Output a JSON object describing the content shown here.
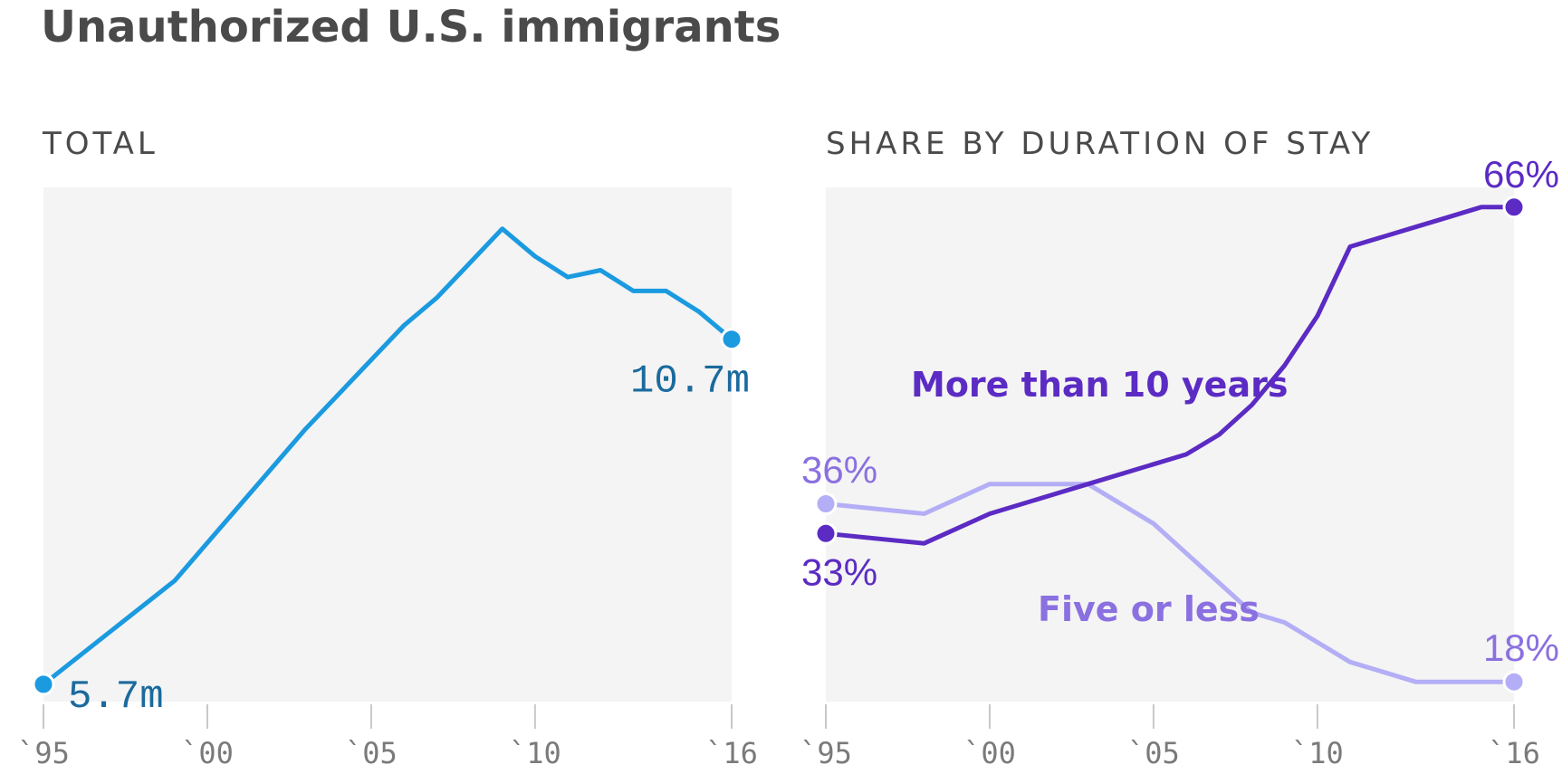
{
  "title": "Unauthorized U.S. immigrants",
  "colors": {
    "total_line": "#1b9ae0",
    "total_label": "#1a6a9e",
    "long_stay": "#5b2bc4",
    "short_stay": "#b3aef5",
    "short_stay_label": "#8a70e0",
    "panel_bg": "#f4f4f4",
    "tick": "#c8c8c8",
    "tick_label": "#7a7a7a"
  },
  "chart_data": [
    {
      "type": "line",
      "panel_title": "TOTAL",
      "x_ticks": [
        1995,
        2000,
        2005,
        2010,
        2016
      ],
      "x_tick_labels": [
        "`95",
        "`00",
        "`05",
        "`10",
        "`16"
      ],
      "xlim": [
        1995,
        2016
      ],
      "ylim": [
        5.45,
        12.9
      ],
      "series": [
        {
          "name": "Total",
          "x": [
            1995,
            1999,
            2003,
            2006,
            2007,
            2008,
            2009,
            2010,
            2011,
            2012,
            2013,
            2014,
            2015,
            2016
          ],
          "values": [
            5.7,
            7.2,
            9.4,
            10.9,
            11.3,
            11.8,
            12.3,
            11.9,
            11.6,
            11.7,
            11.4,
            11.4,
            11.1,
            10.7
          ]
        }
      ],
      "annotations": {
        "start_label": "5.7m",
        "end_label": "10.7m"
      }
    },
    {
      "type": "line",
      "panel_title": "SHARE BY DURATION OF STAY",
      "x_ticks": [
        1995,
        2000,
        2005,
        2010,
        2016
      ],
      "x_tick_labels": [
        "`95",
        "`00",
        "`05",
        "`10",
        "`16"
      ],
      "xlim": [
        1995,
        2016
      ],
      "ylim": [
        16,
        68
      ],
      "series": [
        {
          "name": "More than 10 years",
          "x": [
            1995,
            1998,
            2000,
            2002,
            2003,
            2005,
            2006,
            2007,
            2008,
            2009,
            2010,
            2011,
            2012,
            2013,
            2014,
            2015,
            2016
          ],
          "values": [
            33,
            32,
            35,
            37,
            38,
            40,
            41,
            43,
            46,
            50,
            55,
            62,
            63,
            64,
            65,
            66,
            66
          ]
        },
        {
          "name": "Five or less",
          "x": [
            1995,
            1998,
            2000,
            2002,
            2003,
            2005,
            2006,
            2007,
            2008,
            2009,
            2010,
            2011,
            2012,
            2013,
            2014,
            2015,
            2016
          ],
          "values": [
            36,
            35,
            38,
            38,
            38,
            34,
            31,
            28,
            25,
            24,
            22,
            20,
            19,
            18,
            18,
            18,
            18
          ]
        }
      ],
      "annotations": {
        "long_start_label": "33%",
        "long_end_label": "66%",
        "short_start_label": "36%",
        "short_end_label": "18%",
        "long_series_label": "More than 10 years",
        "short_series_label": "Five or less"
      }
    }
  ]
}
